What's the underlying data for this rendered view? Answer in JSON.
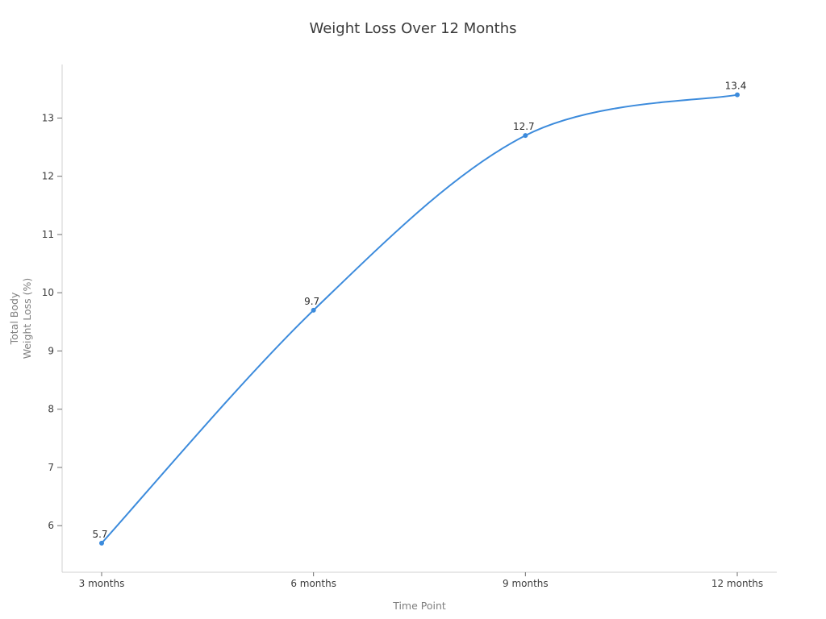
{
  "page": {
    "background": "#ffffff"
  },
  "chart_data": {
    "type": "line",
    "title": "Weight Loss Over 12 Months",
    "xlabel": "Time Point",
    "ylabel_lines": [
      "Total Body",
      "Weight Loss (%)"
    ],
    "categories": [
      "3 months",
      "6 months",
      "9 months",
      "12 months"
    ],
    "series": [
      {
        "name": "Total Body Weight Loss (%)",
        "values": [
          5.7,
          9.7,
          12.7,
          13.4
        ],
        "data_labels": [
          "5.7",
          "9.7",
          "12.7",
          "13.4"
        ]
      }
    ],
    "yticks": [
      6,
      7,
      8,
      9,
      10,
      11,
      12,
      13
    ],
    "ylim": [
      5.2,
      13.92
    ],
    "grid": false,
    "legend": "none",
    "line_color": "#3c8bdc",
    "marker_color": "#3c8bdc",
    "smooth": true
  }
}
